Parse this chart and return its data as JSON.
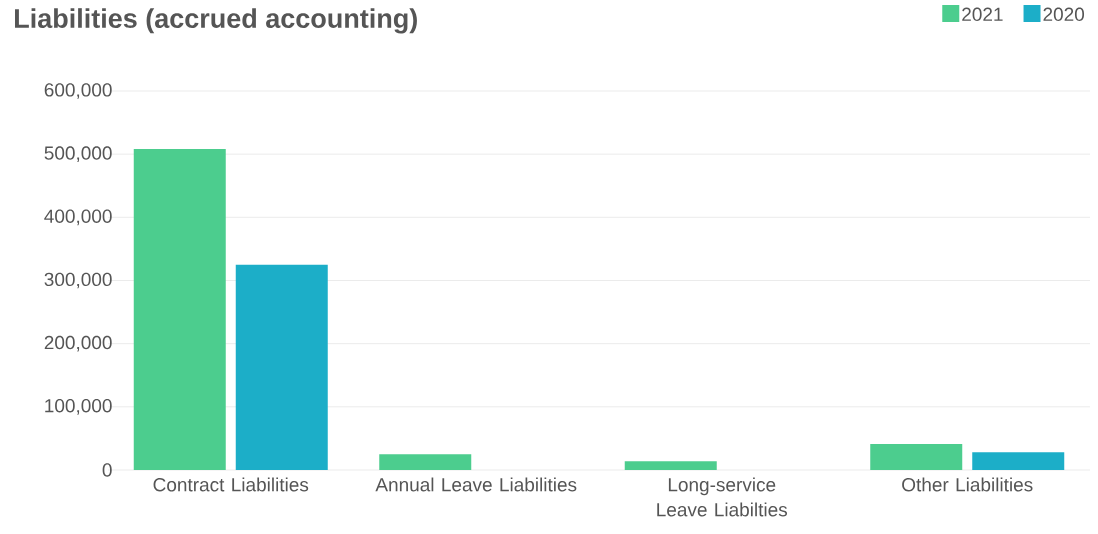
{
  "chart_data": {
    "type": "bar",
    "title": "Liabilities (accrued accounting)",
    "categories": [
      "Contract Liabilities",
      "Annual Leave Liabilities",
      "Long-service Leave Liabilties",
      "Other Liabilities"
    ],
    "series": [
      {
        "name": "2021",
        "color": "#4ccd8e",
        "values": [
          508000,
          25000,
          14000,
          41000
        ]
      },
      {
        "name": "2020",
        "color": "#1caec8",
        "values": [
          325000,
          null,
          null,
          28000
        ]
      }
    ],
    "ylim": [
      0,
      600000
    ],
    "yticks": [
      0,
      {
        "value": 100000,
        "label": "100,000"
      },
      {
        "value": 200000,
        "label": "200,000"
      },
      {
        "value": 300000,
        "label": "300,000"
      },
      {
        "value": 400000,
        "label": "400,000"
      },
      {
        "value": 500000,
        "label": "500,000"
      },
      {
        "value": 600000,
        "label": "600,000"
      }
    ],
    "grid": "y",
    "legend": "top right"
  }
}
